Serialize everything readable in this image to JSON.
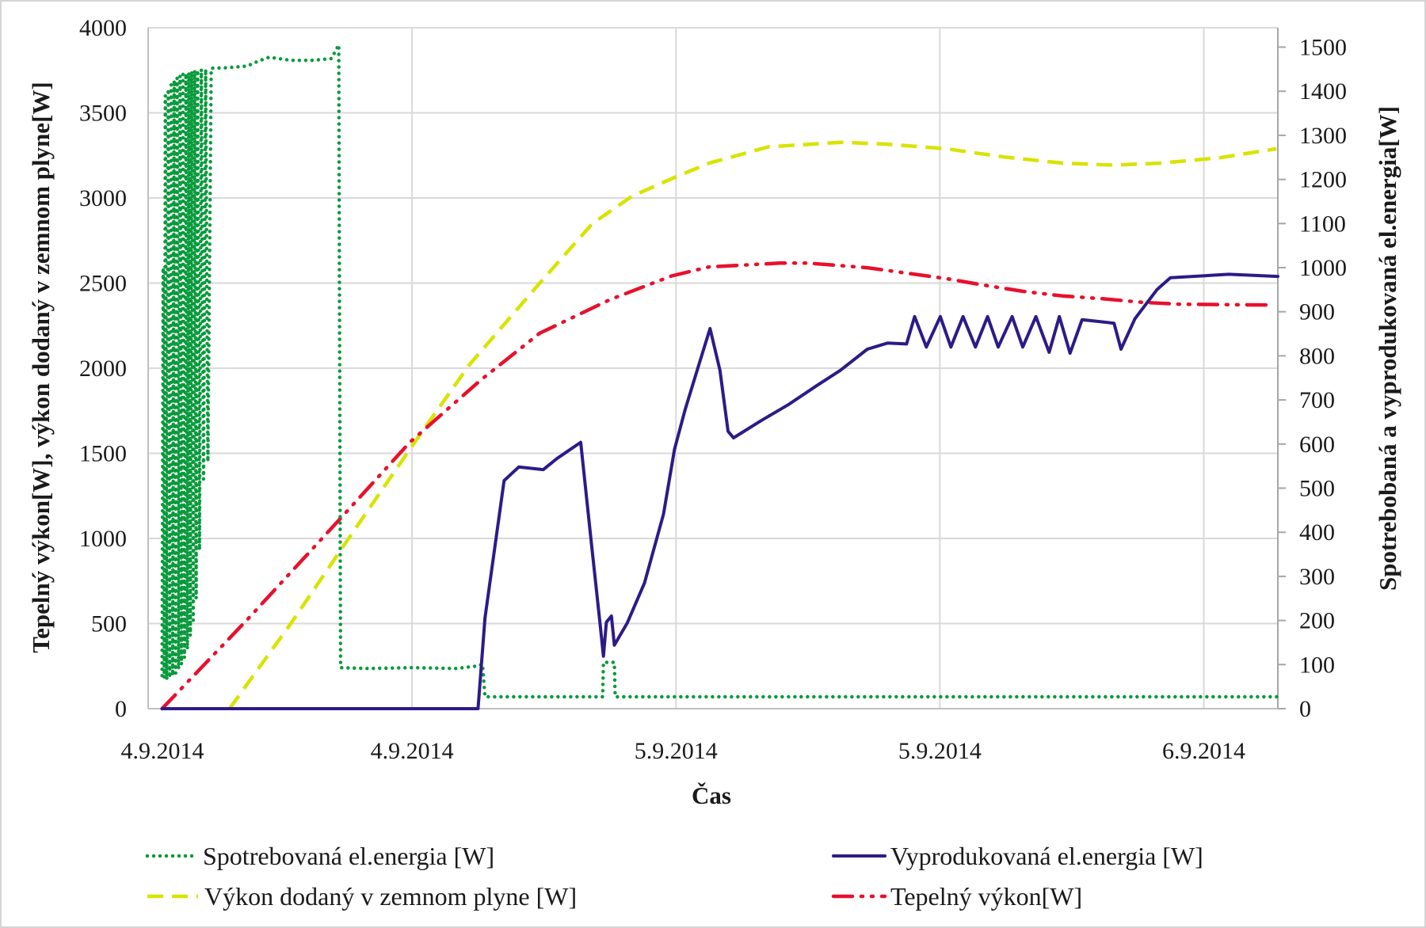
{
  "chart_data": {
    "type": "line",
    "title": "",
    "xlabel": "Čas",
    "ylabel": "Tepelný výkon[W], výkon dodaný v zemnom plyne[W]",
    "ylabel_right": "Spotrebobaná a vyprodukovaná el.energia[W]",
    "xlim": [
      "2014-09-04 00:00",
      "2014-09-06 03:22"
    ],
    "ylim": [
      0,
      4000
    ],
    "ylim_right": [
      0,
      1544
    ],
    "y_ticks": [
      0,
      500,
      1000,
      1500,
      2000,
      2500,
      3000,
      3500,
      4000
    ],
    "y_ticks_right": [
      0,
      100,
      200,
      300,
      400,
      500,
      600,
      700,
      800,
      900,
      1000,
      1100,
      1200,
      1300,
      1400,
      1500
    ],
    "x_ticks": [
      {
        "value": "2014-09-04 00:00",
        "label": "4.9.2014"
      },
      {
        "value": "2014-09-04 12:00",
        "label": "4.9.2014"
      },
      {
        "value": "2014-09-05 00:00",
        "label": "5.9.2014"
      },
      {
        "value": "2014-09-05 12:00",
        "label": "5.9.2014"
      },
      {
        "value": "2014-09-06 00:00",
        "label": "6.9.2014"
      }
    ],
    "grid": true,
    "legend_position": "bottom",
    "series": [
      {
        "name": "Spotrebovaná el.energia [W]",
        "axis": "right",
        "color": "#0a9a3c",
        "style": "dotted",
        "points": [
          [
            "2014-09-04 00:38",
            75
          ],
          [
            "2014-09-04 00:41",
            1000
          ],
          [
            "2014-09-04 00:44",
            70
          ],
          [
            "2014-09-04 00:47",
            1390
          ],
          [
            "2014-09-04 00:51",
            66
          ],
          [
            "2014-09-04 00:55",
            1405
          ],
          [
            "2014-09-04 00:59",
            70
          ],
          [
            "2014-09-04 01:03",
            1415
          ],
          [
            "2014-09-04 01:07",
            75
          ],
          [
            "2014-09-04 01:11",
            1425
          ],
          [
            "2014-09-04 01:15",
            80
          ],
          [
            "2014-09-04 01:19",
            1430
          ],
          [
            "2014-09-04 01:23",
            90
          ],
          [
            "2014-09-04 01:27",
            1435
          ],
          [
            "2014-09-04 01:31",
            100
          ],
          [
            "2014-09-04 01:35",
            1438
          ],
          [
            "2014-09-04 01:39",
            115
          ],
          [
            "2014-09-04 01:43",
            1440
          ],
          [
            "2014-09-04 01:47",
            135
          ],
          [
            "2014-09-04 01:51",
            1442
          ],
          [
            "2014-09-04 01:55",
            165
          ],
          [
            "2014-09-04 01:59",
            1445
          ],
          [
            "2014-09-04 02:03",
            200
          ],
          [
            "2014-09-04 02:07",
            1447
          ],
          [
            "2014-09-04 02:11",
            250
          ],
          [
            "2014-09-04 02:15",
            1448
          ],
          [
            "2014-09-04 02:20",
            360
          ],
          [
            "2014-09-04 02:25",
            1450
          ],
          [
            "2014-09-04 02:31",
            520
          ],
          [
            "2014-09-04 02:37",
            1450
          ],
          [
            "2014-09-04 02:43",
            560
          ],
          [
            "2014-09-04 02:52",
            1452
          ],
          [
            "2014-09-04 03:30",
            1453
          ],
          [
            "2014-09-04 04:30",
            1457
          ],
          [
            "2014-09-04 05:00",
            1468
          ],
          [
            "2014-09-04 05:30",
            1477
          ],
          [
            "2014-09-04 06:30",
            1470
          ],
          [
            "2014-09-04 07:30",
            1470
          ],
          [
            "2014-09-04 08:20",
            1474
          ],
          [
            "2014-09-04 08:40",
            1505
          ],
          [
            "2014-09-04 08:45",
            93
          ],
          [
            "2014-09-04 10:00",
            91
          ],
          [
            "2014-09-04 12:00",
            93
          ],
          [
            "2014-09-04 14:00",
            91
          ],
          [
            "2014-09-04 15:00",
            97
          ],
          [
            "2014-09-04 15:12",
            101
          ],
          [
            "2014-09-04 15:19",
            27
          ],
          [
            "2014-09-04 20:40",
            27
          ],
          [
            "2014-09-04 20:42",
            105
          ],
          [
            "2014-09-04 21:12",
            105
          ],
          [
            "2014-09-04 21:14",
            27
          ],
          [
            "2014-09-06 03:22",
            27
          ]
        ]
      },
      {
        "name": "Vyprodukovaná el.energia [W]",
        "axis": "right",
        "color": "#2e1a87",
        "style": "solid",
        "points": [
          [
            "2014-09-04 00:38",
            0
          ],
          [
            "2014-09-04 15:00",
            0
          ],
          [
            "2014-09-04 15:19",
            206
          ],
          [
            "2014-09-04 16:11",
            517
          ],
          [
            "2014-09-04 16:51",
            548
          ],
          [
            "2014-09-04 17:58",
            542
          ],
          [
            "2014-09-04 18:35",
            567
          ],
          [
            "2014-09-04 19:40",
            604
          ],
          [
            "2014-09-04 20:07",
            392
          ],
          [
            "2014-09-04 20:32",
            200
          ],
          [
            "2014-09-04 20:42",
            119
          ],
          [
            "2014-09-04 20:50",
            196
          ],
          [
            "2014-09-04 21:04",
            210
          ],
          [
            "2014-09-04 21:12",
            144
          ],
          [
            "2014-09-04 21:47",
            194
          ],
          [
            "2014-09-04 22:34",
            285
          ],
          [
            "2014-09-04 23:26",
            441
          ],
          [
            "2014-09-04 23:56",
            588
          ],
          [
            "2014-09-05 00:25",
            678
          ],
          [
            "2014-09-05 01:00",
            773
          ],
          [
            "2014-09-05 01:33",
            862
          ],
          [
            "2014-09-05 02:00",
            767
          ],
          [
            "2014-09-05 02:22",
            629
          ],
          [
            "2014-09-05 02:37",
            614
          ],
          [
            "2014-09-05 03:52",
            653
          ],
          [
            "2014-09-05 05:06",
            689
          ],
          [
            "2014-09-05 06:23",
            732
          ],
          [
            "2014-09-05 07:28",
            767
          ],
          [
            "2014-09-05 08:42",
            815
          ],
          [
            "2014-09-05 09:37",
            829
          ],
          [
            "2014-09-05 10:29",
            827
          ],
          [
            "2014-09-05 10:51",
            889
          ],
          [
            "2014-09-05 11:23",
            820
          ],
          [
            "2014-09-05 12:01",
            889
          ],
          [
            "2014-09-05 12:30",
            820
          ],
          [
            "2014-09-05 13:03",
            889
          ],
          [
            "2014-09-05 13:37",
            820
          ],
          [
            "2014-09-05 14:10",
            889
          ],
          [
            "2014-09-05 14:39",
            820
          ],
          [
            "2014-09-05 15:17",
            889
          ],
          [
            "2014-09-05 15:46",
            820
          ],
          [
            "2014-09-05 16:22",
            889
          ],
          [
            "2014-09-05 16:58",
            808
          ],
          [
            "2014-09-05 17:26",
            889
          ],
          [
            "2014-09-05 17:55",
            806
          ],
          [
            "2014-09-05 18:28",
            882
          ],
          [
            "2014-09-05 19:55",
            874
          ],
          [
            "2014-09-05 20:14",
            815
          ],
          [
            "2014-09-05 20:52",
            884
          ],
          [
            "2014-09-05 21:52",
            950
          ],
          [
            "2014-09-05 22:29",
            977
          ],
          [
            "2014-09-06 01:08",
            985
          ],
          [
            "2014-09-06 03:22",
            980
          ]
        ]
      },
      {
        "name": "Výkon dodaný v zemnom plyne [W]",
        "axis": "left",
        "color": "#d8e300",
        "style": "dashed",
        "points": [
          [
            "2014-09-04 03:42",
            0
          ],
          [
            "2014-09-04 06:30",
            502
          ],
          [
            "2014-09-04 08:48",
            940
          ],
          [
            "2014-09-04 12:00",
            1543
          ],
          [
            "2014-09-04 14:36",
            2019
          ],
          [
            "2014-09-04 17:48",
            2499
          ],
          [
            "2014-09-04 20:12",
            2850
          ],
          [
            "2014-09-04 22:00",
            3010
          ],
          [
            "2014-09-04 23:48",
            3113
          ],
          [
            "2014-09-05 01:30",
            3204
          ],
          [
            "2014-09-05 04:12",
            3300
          ],
          [
            "2014-09-05 07:30",
            3327
          ],
          [
            "2014-09-05 09:36",
            3316
          ],
          [
            "2014-09-05 12:18",
            3289
          ],
          [
            "2014-09-05 14:54",
            3241
          ],
          [
            "2014-09-05 17:36",
            3204
          ],
          [
            "2014-09-05 19:54",
            3193
          ],
          [
            "2014-09-05 22:00",
            3204
          ],
          [
            "2014-09-06 00:42",
            3236
          ],
          [
            "2014-09-06 03:18",
            3289
          ]
        ]
      },
      {
        "name": "Tepelný výkon[W]",
        "axis": "left",
        "color": "#e8102c",
        "style": "dash-dot-dot",
        "points": [
          [
            "2014-09-04 00:38",
            0
          ],
          [
            "2014-09-04 04:33",
            529
          ],
          [
            "2014-09-04 08:35",
            1095
          ],
          [
            "2014-09-04 11:54",
            1565
          ],
          [
            "2014-09-04 15:06",
            1928
          ],
          [
            "2014-09-04 17:48",
            2205
          ],
          [
            "2014-09-04 21:00",
            2403
          ],
          [
            "2014-09-04 23:48",
            2542
          ],
          [
            "2014-09-05 01:30",
            2595
          ],
          [
            "2014-09-05 04:42",
            2617
          ],
          [
            "2014-09-05 06:00",
            2617
          ],
          [
            "2014-09-05 08:42",
            2590
          ],
          [
            "2014-09-05 10:30",
            2558
          ],
          [
            "2014-09-05 12:18",
            2526
          ],
          [
            "2014-09-05 14:00",
            2488
          ],
          [
            "2014-09-05 15:48",
            2451
          ],
          [
            "2014-09-05 17:36",
            2424
          ],
          [
            "2014-09-05 19:24",
            2408
          ],
          [
            "2014-09-05 21:12",
            2387
          ],
          [
            "2014-09-05 22:54",
            2376
          ],
          [
            "2014-09-06 02:54",
            2371
          ]
        ]
      }
    ]
  }
}
